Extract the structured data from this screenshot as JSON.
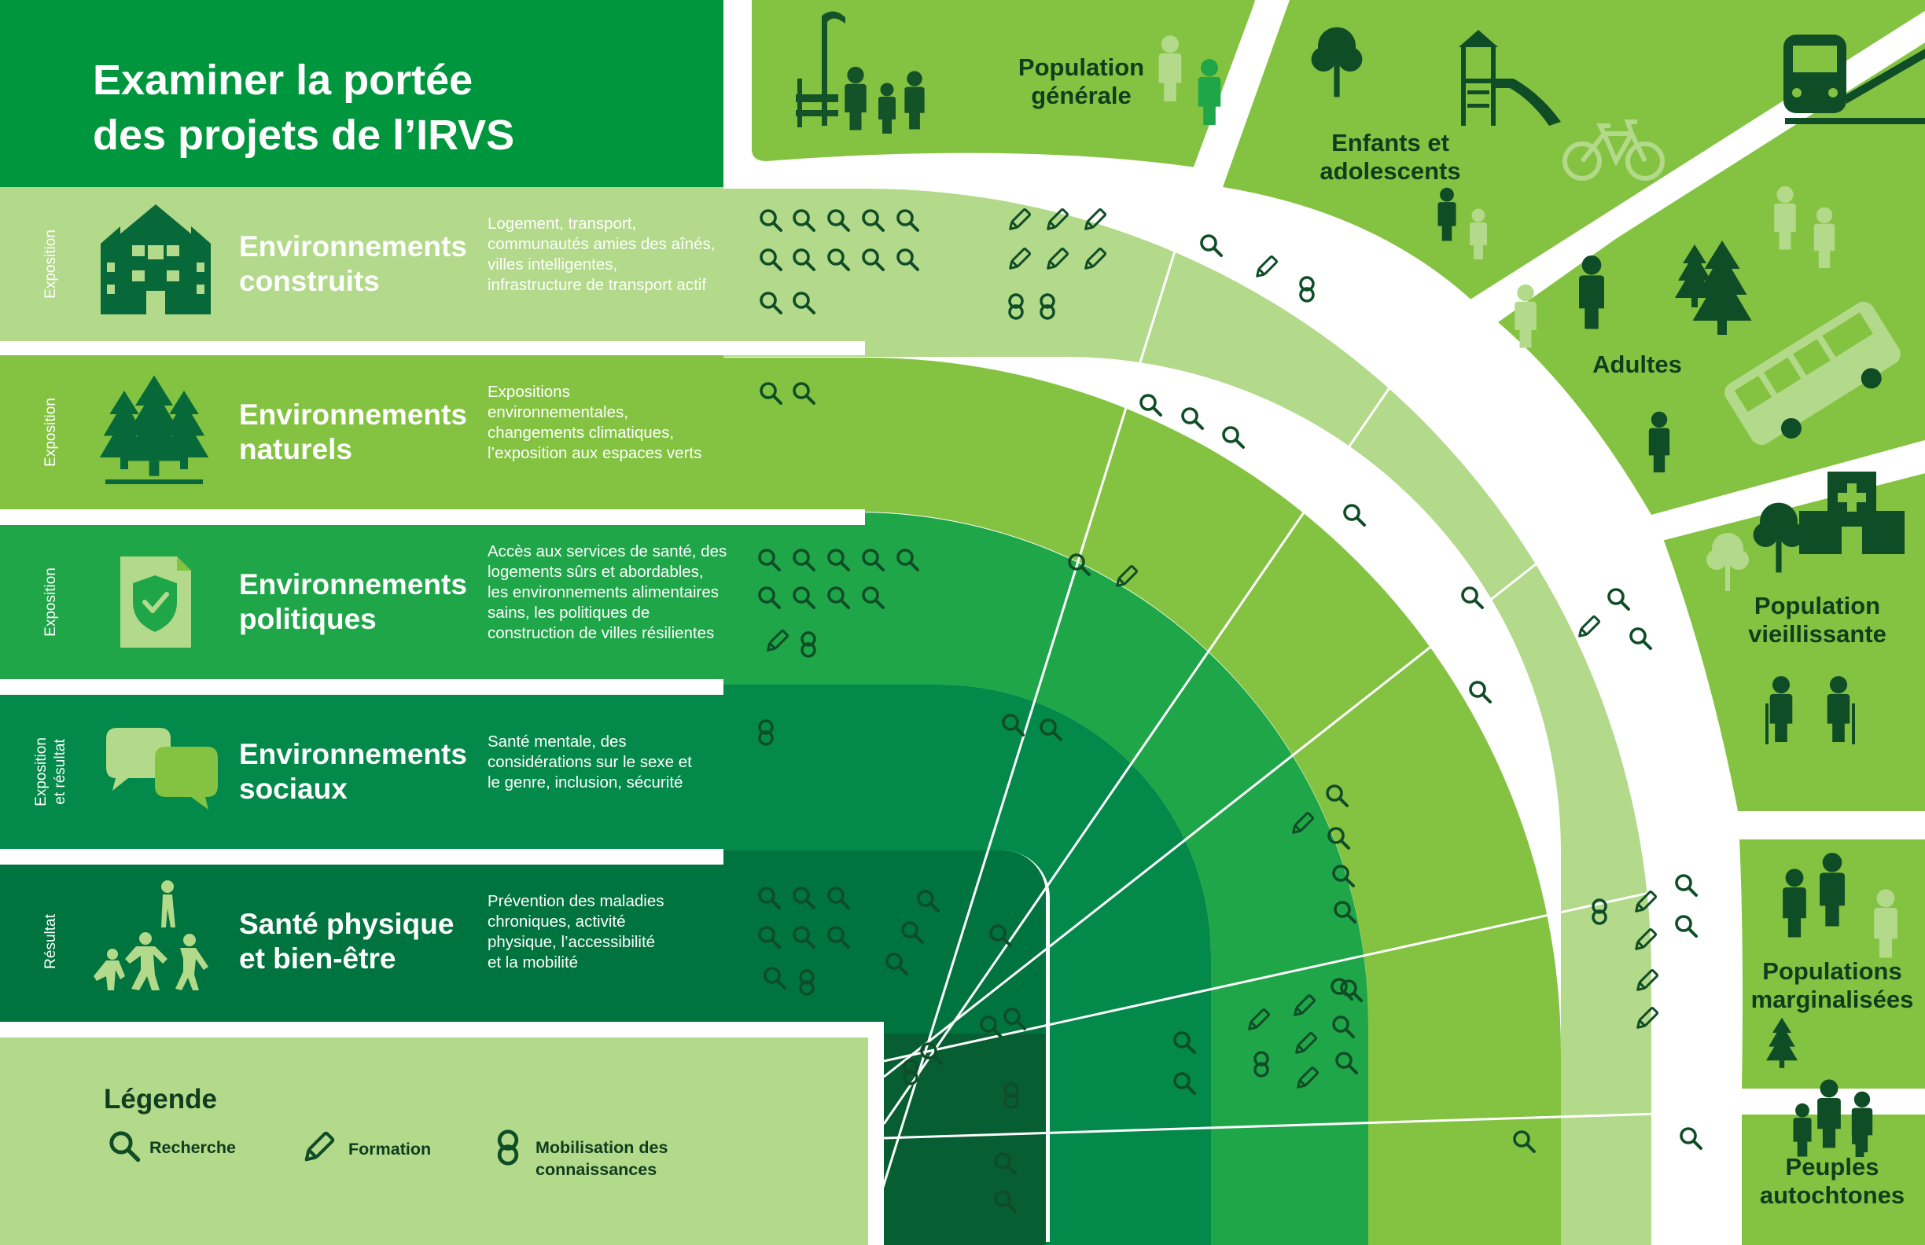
{
  "title": [
    "Examiner la portée",
    "des projets de l’IRVS"
  ],
  "rows": [
    {
      "side": [
        "Exposition"
      ],
      "heading": [
        "Environnements",
        "construits"
      ],
      "description": [
        "Logement, transport,",
        "communautés amies des aînés,",
        "villes intelligentes,",
        "infrastructure de transport actif"
      ]
    },
    {
      "side": [
        "Exposition"
      ],
      "heading": [
        "Environnements",
        "naturels"
      ],
      "description": [
        "Expositions",
        "environnementales,",
        "changements climatiques,",
        "l’exposition aux espaces verts"
      ]
    },
    {
      "side": [
        "Exposition"
      ],
      "heading": [
        "Environnements",
        "politiques"
      ],
      "description": [
        "Accès aux services de santé, des",
        "logements sûrs et abordables,",
        "les environnements alimentaires",
        "sains, les politiques de",
        "construction de villes résilientes"
      ]
    },
    {
      "side": [
        "Exposition",
        "et résultat"
      ],
      "heading": [
        "Environnements",
        "sociaux"
      ],
      "description": [
        "Santé mentale, des",
        "considérations sur le sexe et",
        "le genre, inclusion, sécurité"
      ]
    },
    {
      "side": [
        "Résultat"
      ],
      "heading": [
        "Santé physique",
        "et bien-être"
      ],
      "description": [
        "Prévention des maladies",
        "chroniques, activité",
        "physique, l’accessibilité",
        "et la mobilité"
      ]
    }
  ],
  "populations": [
    {
      "label": [
        "Population",
        "générale"
      ]
    },
    {
      "label": [
        "Enfants et",
        "adolescents"
      ]
    },
    {
      "label": [
        "Adultes"
      ]
    },
    {
      "label": [
        "Population",
        "vieillissante"
      ]
    },
    {
      "label": [
        "Populations",
        "marginalisées"
      ]
    },
    {
      "label": [
        "Peuples",
        "autochtones"
      ]
    }
  ],
  "legend": {
    "title": "Légende",
    "items": [
      {
        "key": "research",
        "label": [
          "Recherche"
        ],
        "icon": "magnifier-icon"
      },
      {
        "key": "training",
        "label": [
          "Formation"
        ],
        "icon": "pencil-icon"
      },
      {
        "key": "mobilization",
        "label": [
          "Mobilisation des",
          "connaissances"
        ],
        "icon": "linked-rings-icon"
      }
    ]
  },
  "colors": {
    "light": "#b3d98a",
    "mid": "#84c341",
    "green": "#1fa649",
    "dark": "#03894a",
    "darker": "#00743f",
    "darkest": "#075e32",
    "title_bg": "#00963e",
    "road": "#ffffff",
    "icon_dark": "#0f4d27"
  }
}
